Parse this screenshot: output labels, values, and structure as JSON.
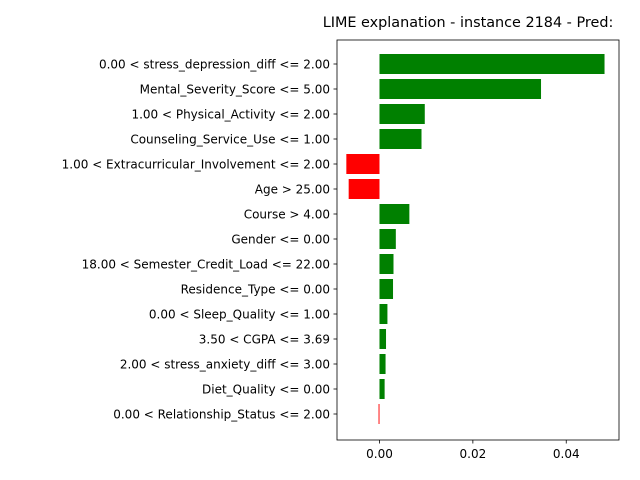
{
  "chart_data": {
    "type": "bar",
    "orientation": "horizontal",
    "title": "LIME explanation - instance 2184 - Pred:",
    "xlabel": "",
    "ylabel": "",
    "xlim": [
      -0.0091,
      0.0513
    ],
    "xticks": [
      0.0,
      0.02,
      0.04
    ],
    "xtick_labels": [
      "0.00",
      "0.02",
      "0.04"
    ],
    "grid": false,
    "colors": {
      "positive": "#008000",
      "negative": "#ff0000"
    },
    "categories": [
      "0.00 < stress_depression_diff <= 2.00",
      "Mental_Severity_Score <= 5.00",
      "1.00 < Physical_Activity <= 2.00",
      "Counseling_Service_Use <= 1.00",
      "1.00 < Extracurricular_Involvement <= 2.00",
      "Age > 25.00",
      "Course > 4.00",
      "Gender <= 0.00",
      "18.00 < Semester_Credit_Load <= 22.00",
      "Residence_Type <= 0.00",
      "0.00 < Sleep_Quality <= 1.00",
      "3.50 < CGPA <= 3.69",
      "2.00 < stress_anxiety_diff <= 3.00",
      "Diet_Quality <= 0.00",
      "0.00 < Relationship_Status <= 2.00"
    ],
    "values": [
      0.0482,
      0.0346,
      0.0097,
      0.009,
      -0.0071,
      -0.0066,
      0.0064,
      0.0035,
      0.003,
      0.0029,
      0.0017,
      0.0014,
      0.0013,
      0.0011,
      -0.0002
    ]
  }
}
